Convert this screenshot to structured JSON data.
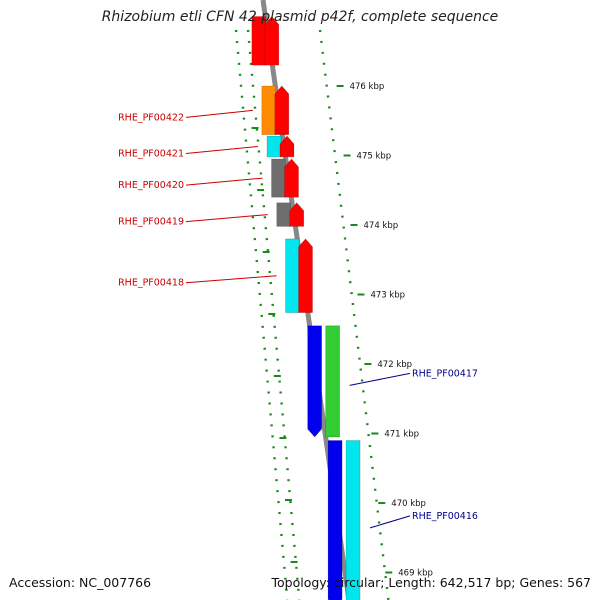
{
  "title": "Rhizobium etli CFN 42 plasmid p42f, complete sequence",
  "footer": {
    "accession": "Accession: NC_007766",
    "summary": "Topology: circular; Length: 642,517 bp; Genes: 567"
  },
  "colors": {
    "backbone": "#888888",
    "tick": "#1a8a1a",
    "label_forward": "#cc0000",
    "label_reverse": "#00008b",
    "red": "#ff0000",
    "orange": "#ff8c00",
    "cyan": "#00e5ee",
    "gray": "#6e6e6e",
    "blue": "#0000ee",
    "green": "#33cc33"
  },
  "scale": {
    "unit": "kbp",
    "ticks": [
      {
        "kbp": 476,
        "label": "476 kbp"
      },
      {
        "kbp": 475,
        "label": "475 kbp"
      },
      {
        "kbp": 474,
        "label": "474 kbp"
      },
      {
        "kbp": 473,
        "label": "473 kbp"
      },
      {
        "kbp": 472,
        "label": "472 kbp"
      },
      {
        "kbp": 471,
        "label": "471 kbp"
      },
      {
        "kbp": 470,
        "label": "470 kbp"
      },
      {
        "kbp": 469,
        "label": "469 kbp"
      }
    ]
  },
  "features": [
    {
      "id": "RHE_PF00422",
      "strand": "forward",
      "kbp_start": 475.3,
      "kbp_end": 476.0,
      "color_key": "orange",
      "labeled": true
    },
    {
      "id": "RHE_PF00421",
      "strand": "forward",
      "kbp_start": 474.98,
      "kbp_end": 475.28,
      "color_key": "cyan",
      "labeled": true
    },
    {
      "id": "RHE_PF00420",
      "strand": "forward",
      "kbp_start": 474.4,
      "kbp_end": 474.95,
      "color_key": "gray",
      "labeled": true
    },
    {
      "id": "RHE_PF00419",
      "strand": "forward",
      "kbp_start": 473.98,
      "kbp_end": 474.32,
      "color_key": "gray",
      "labeled": true
    },
    {
      "id": "RHE_PF00418",
      "strand": "forward",
      "kbp_start": 472.74,
      "kbp_end": 473.8,
      "color_key": "cyan",
      "labeled": true
    },
    {
      "id": "RHE_PF00417",
      "strand": "reverse",
      "kbp_start": 470.95,
      "kbp_end": 472.55,
      "color_key": "green",
      "labeled": true
    },
    {
      "id": "RHE_PF00416",
      "strand": "reverse",
      "kbp_start": 468.5,
      "kbp_end": 470.9,
      "color_key": "cyan",
      "labeled": true
    },
    {
      "id": "",
      "strand": "forward",
      "kbp_start": 476.3,
      "kbp_end": 477.0,
      "color_key": "red",
      "labeled": false
    }
  ]
}
